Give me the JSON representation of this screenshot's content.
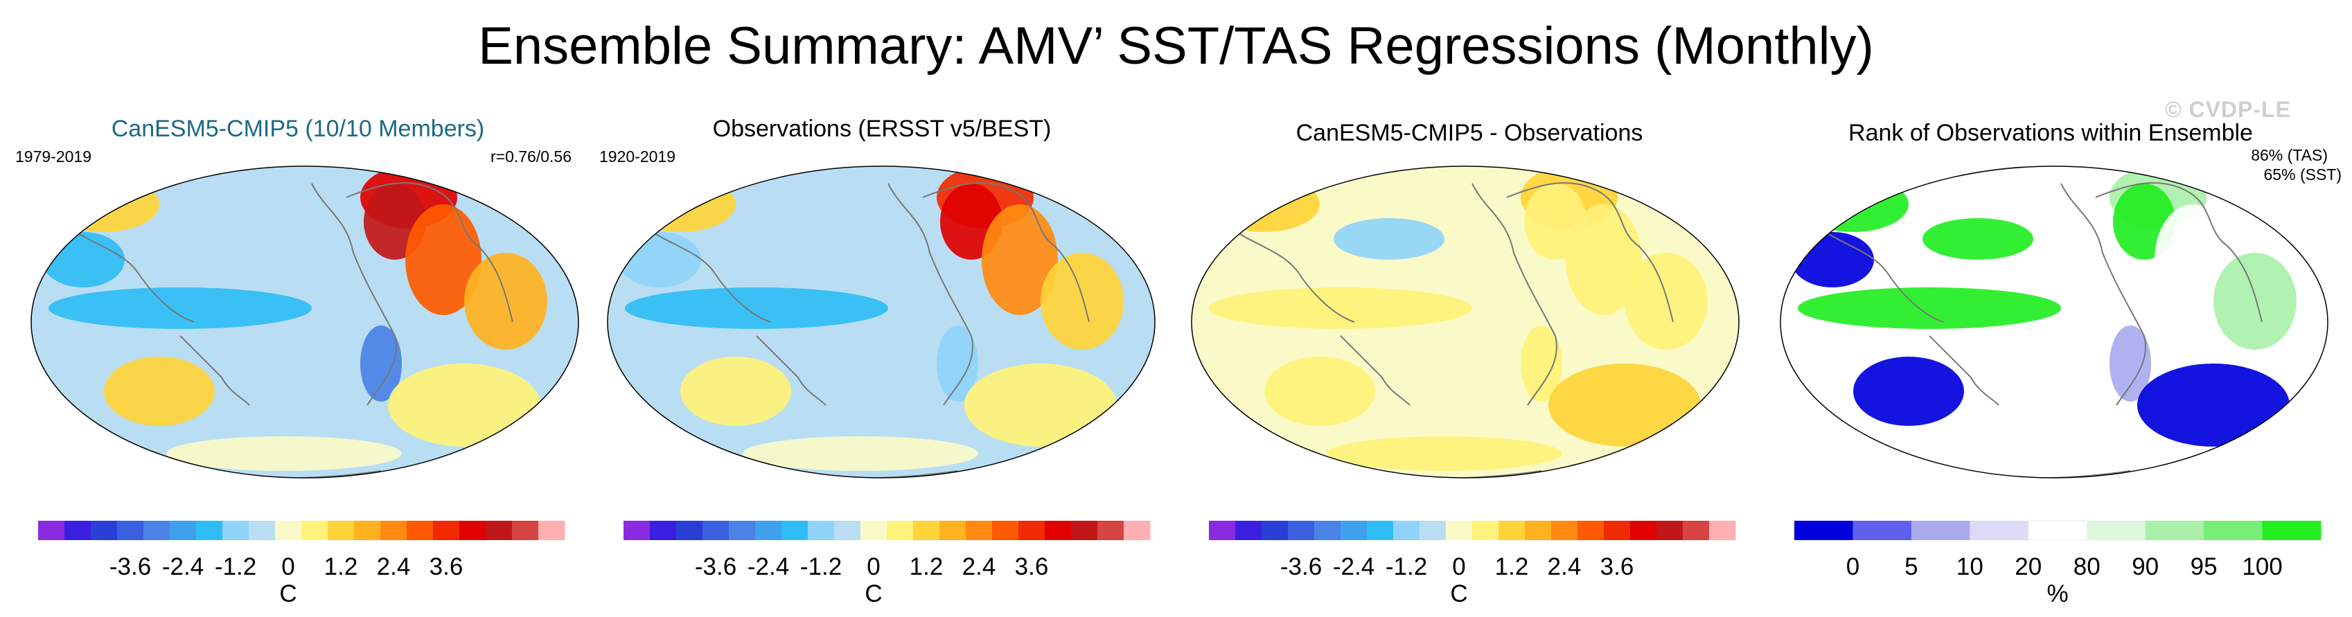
{
  "title": "Ensemble Summary: AMV’ SST/TAS Regressions (Monthly)",
  "watermark": "© CVDP-LE",
  "colors": {
    "diverging": [
      "#8a2be2",
      "#3b1fe0",
      "#2a3fd6",
      "#3a5fe0",
      "#4a82e6",
      "#3fa0ee",
      "#2fbdf5",
      "#8fd4f8",
      "#b9def3",
      "#fafac8",
      "#fff27a",
      "#ffd43a",
      "#ffb21f",
      "#ff8a10",
      "#ff5a00",
      "#f22a00",
      "#e00000",
      "#c01818",
      "#d64444",
      "#ffb0b0"
    ],
    "rank": [
      "#0000dd",
      "#6060ee",
      "#aaaaee",
      "#dcdcf8",
      "#ffffff",
      "#ddf8dd",
      "#aaf0aa",
      "#77ee77",
      "#22ee22"
    ]
  },
  "panels": [
    {
      "title": "CanESM5-CMIP5 (10/10 Members)",
      "period": "1979-2019",
      "corr": "r=0.76/0.56"
    },
    {
      "title": "Observations (ERSST v5/BEST)",
      "period": "1920-2019"
    },
    {
      "title": "CanESM5-CMIP5 - Observations"
    },
    {
      "title": "Rank of Observations within Ensemble",
      "pct_tas": "86% (TAS)",
      "pct_sst": "65% (SST)"
    }
  ],
  "chart_data": [
    {
      "type": "heatmap",
      "title": "CanESM5-CMIP5 (10/10 Members)",
      "subtitle_left": "1979-2019",
      "subtitle_right": "r=0.76/0.56",
      "colorbar_label": "C",
      "colorbar_ticks": [
        "-3.6",
        "-2.4",
        "-1.2",
        "0",
        "1.2",
        "2.4",
        "3.6"
      ],
      "colorbar_levels": [
        -4.2,
        -3.9,
        -3.6,
        -3.3,
        -3.0,
        -2.7,
        -2.4,
        -2.1,
        -1.8,
        -1.5,
        -1.2,
        -0.9,
        -0.6,
        -0.3,
        0,
        0.3,
        0.6,
        0.9,
        1.2,
        1.5,
        1.8,
        2.1,
        2.4,
        2.7,
        3.0,
        3.3,
        3.6,
        3.9,
        4.2
      ]
    },
    {
      "type": "heatmap",
      "title": "Observations (ERSST v5/BEST)",
      "subtitle_left": "1920-2019",
      "colorbar_label": "C",
      "colorbar_ticks": [
        "-3.6",
        "-2.4",
        "-1.2",
        "0",
        "1.2",
        "2.4",
        "3.6"
      ]
    },
    {
      "type": "heatmap",
      "title": "CanESM5-CMIP5 - Observations",
      "colorbar_label": "C",
      "colorbar_ticks": [
        "-3.6",
        "-2.4",
        "-1.2",
        "0",
        "1.2",
        "2.4",
        "3.6"
      ]
    },
    {
      "type": "heatmap",
      "title": "Rank of Observations within Ensemble",
      "annotations": [
        "86% (TAS)",
        "65% (SST)"
      ],
      "colorbar_label": "%",
      "colorbar_ticks": [
        "0",
        "5",
        "10",
        "20",
        "80",
        "90",
        "95",
        "100"
      ],
      "colorbar_boundaries": [
        0,
        5,
        10,
        20,
        80,
        90,
        95,
        100
      ]
    }
  ]
}
